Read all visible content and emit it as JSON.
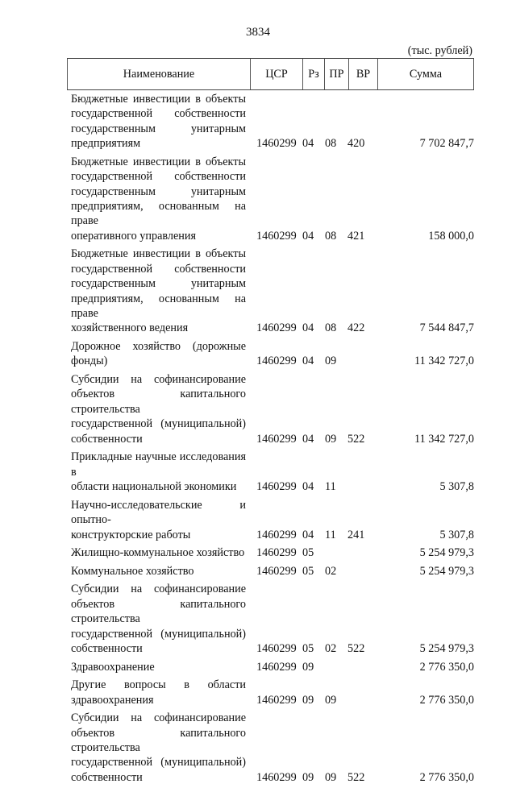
{
  "page_number": "3834",
  "units": "(тыс. рублей)",
  "columns": {
    "name": "Наименование",
    "csr": "ЦСР",
    "rz": "Рз",
    "pr": "ПР",
    "vr": "ВР",
    "sum": "Сумма"
  },
  "rows": [
    {
      "lines": [
        "Бюджетные инвестиции в объекты",
        "государственной собственности",
        "государственным унитарным",
        "предприятиям"
      ],
      "csr": "1460299",
      "rz": "04",
      "pr": "08",
      "vr": "420",
      "sum": "7 702 847,7"
    },
    {
      "lines": [
        "Бюджетные инвестиции в объекты",
        "государственной собственности",
        "государственным унитарным",
        "предприятиям, основанным на праве",
        "оперативного управления"
      ],
      "csr": "1460299",
      "rz": "04",
      "pr": "08",
      "vr": "421",
      "sum": "158 000,0"
    },
    {
      "lines": [
        "Бюджетные инвестиции в объекты",
        "государственной собственности",
        "государственным унитарным",
        "предприятиям, основанным на праве",
        "хозяйственного ведения"
      ],
      "csr": "1460299",
      "rz": "04",
      "pr": "08",
      "vr": "422",
      "sum": "7 544 847,7"
    },
    {
      "lines": [
        "Дорожное хозяйство (дорожные",
        "фонды)"
      ],
      "csr": "1460299",
      "rz": "04",
      "pr": "09",
      "vr": "",
      "sum": "11 342 727,0"
    },
    {
      "lines": [
        "Субсидии на софинансирование",
        "объектов капитального строительства",
        "государственной (муниципальной)",
        "собственности"
      ],
      "csr": "1460299",
      "rz": "04",
      "pr": "09",
      "vr": "522",
      "sum": "11 342 727,0"
    },
    {
      "lines": [
        "Прикладные научные исследования в",
        "области национальной экономики"
      ],
      "csr": "1460299",
      "rz": "04",
      "pr": "11",
      "vr": "",
      "sum": "5 307,8"
    },
    {
      "lines": [
        "Научно-исследовательские и опытно-",
        "конструкторские работы"
      ],
      "csr": "1460299",
      "rz": "04",
      "pr": "11",
      "vr": "241",
      "sum": "5 307,8"
    },
    {
      "lines": [
        "Жилищно-коммунальное хозяйство"
      ],
      "csr": "1460299",
      "rz": "05",
      "pr": "",
      "vr": "",
      "sum": "5 254 979,3"
    },
    {
      "lines": [
        "Коммунальное хозяйство"
      ],
      "csr": "1460299",
      "rz": "05",
      "pr": "02",
      "vr": "",
      "sum": "5 254 979,3"
    },
    {
      "lines": [
        "Субсидии на софинансирование",
        "объектов капитального строительства",
        "государственной (муниципальной)",
        "собственности"
      ],
      "csr": "1460299",
      "rz": "05",
      "pr": "02",
      "vr": "522",
      "sum": "5 254 979,3"
    },
    {
      "lines": [
        "Здравоохранение"
      ],
      "csr": "1460299",
      "rz": "09",
      "pr": "",
      "vr": "",
      "sum": "2 776 350,0"
    },
    {
      "lines": [
        "Другие вопросы в области",
        "здравоохранения"
      ],
      "csr": "1460299",
      "rz": "09",
      "pr": "09",
      "vr": "",
      "sum": "2 776 350,0"
    },
    {
      "lines": [
        "Субсидии на софинансирование",
        "объектов капитального строительства",
        "государственной (муниципальной)",
        "собственности"
      ],
      "csr": "1460299",
      "rz": "09",
      "pr": "09",
      "vr": "522",
      "sum": "2 776 350,0"
    }
  ]
}
